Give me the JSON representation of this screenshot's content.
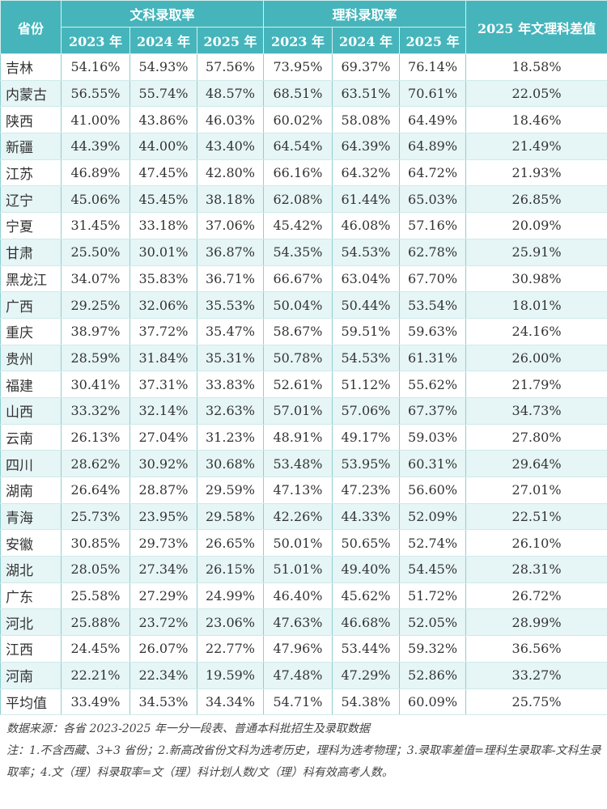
{
  "header": {
    "province": "省份",
    "arts": "文科录取率",
    "science": "理科录取率",
    "diff": "2025 年文理科差值",
    "years": [
      "2023 年",
      "2024 年",
      "2025 年"
    ]
  },
  "rows": [
    [
      "吉林",
      "54.16%",
      "54.93%",
      "57.56%",
      "73.95%",
      "69.37%",
      "76.14%",
      "18.58%"
    ],
    [
      "内蒙古",
      "56.55%",
      "55.74%",
      "48.57%",
      "68.51%",
      "63.51%",
      "70.61%",
      "22.05%"
    ],
    [
      "陕西",
      "41.00%",
      "43.86%",
      "46.03%",
      "60.02%",
      "58.08%",
      "64.49%",
      "18.46%"
    ],
    [
      "新疆",
      "44.39%",
      "44.00%",
      "43.40%",
      "64.54%",
      "64.39%",
      "64.89%",
      "21.49%"
    ],
    [
      "江苏",
      "46.89%",
      "47.45%",
      "42.80%",
      "66.16%",
      "64.32%",
      "64.72%",
      "21.93%"
    ],
    [
      "辽宁",
      "45.06%",
      "45.45%",
      "38.18%",
      "62.08%",
      "61.44%",
      "65.03%",
      "26.85%"
    ],
    [
      "宁夏",
      "31.45%",
      "33.18%",
      "37.06%",
      "45.42%",
      "46.08%",
      "57.16%",
      "20.09%"
    ],
    [
      "甘肃",
      "25.50%",
      "30.01%",
      "36.87%",
      "54.35%",
      "54.53%",
      "62.78%",
      "25.91%"
    ],
    [
      "黑龙江",
      "34.07%",
      "35.83%",
      "36.71%",
      "66.67%",
      "63.04%",
      "67.70%",
      "30.98%"
    ],
    [
      "广西",
      "29.25%",
      "32.06%",
      "35.53%",
      "50.04%",
      "50.44%",
      "53.54%",
      "18.01%"
    ],
    [
      "重庆",
      "38.97%",
      "37.72%",
      "35.47%",
      "58.67%",
      "59.51%",
      "59.63%",
      "24.16%"
    ],
    [
      "贵州",
      "28.59%",
      "31.84%",
      "35.31%",
      "50.78%",
      "54.53%",
      "61.31%",
      "26.00%"
    ],
    [
      "福建",
      "30.41%",
      "37.31%",
      "33.83%",
      "52.61%",
      "51.12%",
      "55.62%",
      "21.79%"
    ],
    [
      "山西",
      "33.32%",
      "32.14%",
      "32.63%",
      "57.01%",
      "57.06%",
      "67.37%",
      "34.73%"
    ],
    [
      "云南",
      "26.13%",
      "27.04%",
      "31.23%",
      "48.91%",
      "49.17%",
      "59.03%",
      "27.80%"
    ],
    [
      "四川",
      "28.62%",
      "30.92%",
      "30.68%",
      "53.48%",
      "53.95%",
      "60.31%",
      "29.64%"
    ],
    [
      "湖南",
      "26.64%",
      "28.87%",
      "29.59%",
      "47.13%",
      "47.23%",
      "56.60%",
      "27.01%"
    ],
    [
      "青海",
      "25.73%",
      "23.95%",
      "29.58%",
      "42.26%",
      "44.33%",
      "52.09%",
      "22.51%"
    ],
    [
      "安徽",
      "30.85%",
      "29.73%",
      "26.65%",
      "50.01%",
      "50.65%",
      "52.74%",
      "26.10%"
    ],
    [
      "湖北",
      "28.05%",
      "27.34%",
      "26.15%",
      "51.01%",
      "49.40%",
      "54.45%",
      "28.31%"
    ],
    [
      "广东",
      "25.58%",
      "27.29%",
      "24.99%",
      "46.40%",
      "45.62%",
      "51.72%",
      "26.72%"
    ],
    [
      "河北",
      "25.88%",
      "23.72%",
      "23.06%",
      "47.63%",
      "46.68%",
      "52.05%",
      "28.99%"
    ],
    [
      "江西",
      "24.45%",
      "26.07%",
      "22.77%",
      "47.96%",
      "53.44%",
      "59.32%",
      "36.56%"
    ],
    [
      "河南",
      "22.21%",
      "22.34%",
      "19.59%",
      "47.48%",
      "47.29%",
      "52.86%",
      "33.27%"
    ],
    [
      "平均值",
      "33.49%",
      "34.53%",
      "34.34%",
      "54.71%",
      "54.38%",
      "60.09%",
      "25.75%"
    ]
  ],
  "notes": {
    "source": "数据来源：各省 2023-2025 年一分一段表、普通本科批招生及录取数据",
    "note": "注：1.不含西藏、3+3 省份；2.新高改省份文科为选考历史，理科为选考物理；3.录取率差值=理科生录取率-文科生录取率；4.文（理）科录取率=文（理）科计划人数/文（理）科有效高考人数。"
  }
}
